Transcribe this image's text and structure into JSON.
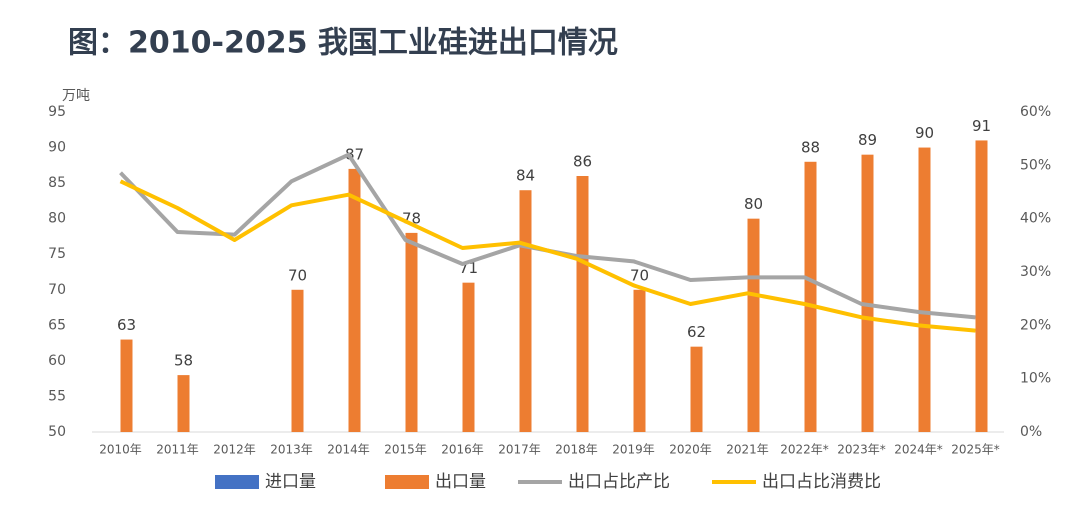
{
  "chart_data": {
    "type": "combo",
    "title": "图：2010-2025 我国工业硅进出口情况",
    "y_unit": "万吨",
    "categories": [
      "2010年",
      "2011年",
      "2012年",
      "2013年",
      "2014年",
      "2015年",
      "2016年",
      "2017年",
      "2018年",
      "2019年",
      "2020年",
      "2021年",
      "2022年*",
      "2023年*",
      "2024年*",
      "2025年*"
    ],
    "series": [
      {
        "name": "进口量",
        "type": "bar",
        "color": "#4472c4",
        "values": [
          null,
          null,
          null,
          null,
          null,
          null,
          null,
          null,
          null,
          null,
          null,
          null,
          null,
          null,
          null,
          null
        ]
      },
      {
        "name": "出口量",
        "type": "bar",
        "color": "#ed7d31",
        "values": [
          63,
          58,
          null,
          70,
          87,
          78,
          71,
          84,
          86,
          70,
          62,
          80,
          88,
          89,
          90,
          91
        ]
      },
      {
        "name": "出口占比产比",
        "type": "line",
        "axis": "y2",
        "color": "#a5a5a5",
        "values": [
          48.6,
          37.5,
          37,
          47,
          52,
          36,
          31.5,
          35,
          33,
          32,
          28.5,
          29,
          29,
          24,
          22.5,
          21.5
        ]
      },
      {
        "name": "出口占比消费比",
        "type": "line",
        "axis": "y2",
        "color": "#ffc000",
        "values": [
          47,
          42,
          36,
          42.5,
          44.5,
          39.5,
          34.5,
          35.5,
          32.5,
          27.5,
          24,
          26,
          24,
          21.5,
          20,
          19
        ]
      }
    ],
    "ylim": [
      50,
      95
    ],
    "yticks": [
      50,
      55,
      60,
      65,
      70,
      75,
      80,
      85,
      90,
      95
    ],
    "y2lim": [
      0,
      60
    ],
    "y2ticks": [
      {
        "value": 0,
        "label": "0%"
      },
      {
        "value": 10,
        "label": "10%"
      },
      {
        "value": 20,
        "label": "20%"
      },
      {
        "value": 30,
        "label": "30%"
      },
      {
        "value": 40,
        "label": "40%"
      },
      {
        "value": 50,
        "label": "50%"
      },
      {
        "value": 60,
        "label": "60%"
      }
    ],
    "grid": false
  }
}
